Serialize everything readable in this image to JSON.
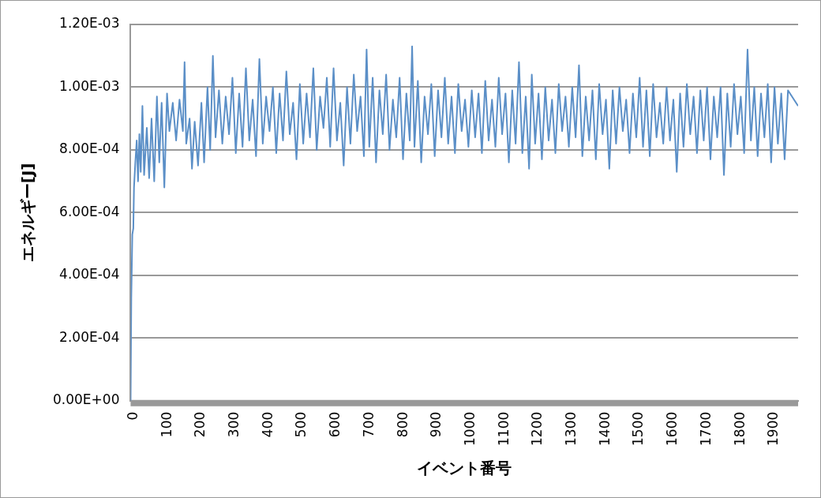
{
  "chart_data": {
    "type": "line",
    "xlabel": "イベント番号",
    "ylabel": "エネルギー[J]",
    "xlim": [
      0,
      1980
    ],
    "xticks": [
      0,
      100,
      200,
      300,
      400,
      500,
      600,
      700,
      800,
      900,
      1000,
      1100,
      1200,
      1300,
      1400,
      1500,
      1600,
      1700,
      1800,
      1900
    ],
    "ylim": [
      0,
      0.0012
    ],
    "yticks": [
      {
        "value": 0,
        "label": "0.00E+00"
      },
      {
        "value": 0.0002,
        "label": "2.00E-04"
      },
      {
        "value": 0.0004,
        "label": "4.00E-04"
      },
      {
        "value": 0.0006,
        "label": "6.00E-04"
      },
      {
        "value": 0.0008,
        "label": "8.00E-04"
      },
      {
        "value": 0.001,
        "label": "1.00E-03"
      },
      {
        "value": 0.0012,
        "label": "1.20E-03"
      }
    ],
    "grid": "y",
    "legend": false,
    "marker": "none",
    "line_style": "solid",
    "series": [
      {
        "color": "#5b8fc7",
        "x": [
          0,
          2,
          5,
          8,
          10,
          14,
          18,
          22,
          26,
          30,
          35,
          40,
          48,
          55,
          62,
          70,
          78,
          85,
          92,
          100,
          108,
          115,
          125,
          135,
          145,
          155,
          160,
          165,
          175,
          182,
          190,
          200,
          210,
          218,
          228,
          236,
          244,
          252,
          262,
          272,
          282,
          292,
          302,
          312,
          322,
          332,
          342,
          352,
          362,
          372,
          382,
          392,
          402,
          412,
          422,
          432,
          442,
          452,
          462,
          472,
          482,
          492,
          502,
          512,
          522,
          532,
          542,
          552,
          562,
          572,
          582,
          592,
          602,
          612,
          622,
          632,
          642,
          652,
          662,
          672,
          682,
          692,
          700,
          708,
          718,
          728,
          738,
          748,
          758,
          768,
          778,
          788,
          798,
          808,
          818,
          828,
          835,
          842,
          852,
          862,
          872,
          882,
          892,
          902,
          912,
          922,
          932,
          942,
          952,
          962,
          972,
          982,
          992,
          1002,
          1012,
          1022,
          1032,
          1042,
          1052,
          1062,
          1072,
          1082,
          1092,
          1102,
          1112,
          1122,
          1132,
          1142,
          1152,
          1162,
          1172,
          1182,
          1190,
          1200,
          1210,
          1220,
          1230,
          1240,
          1250,
          1260,
          1270,
          1280,
          1290,
          1300,
          1310,
          1320,
          1330,
          1340,
          1350,
          1360,
          1370,
          1380,
          1390,
          1400,
          1410,
          1420,
          1430,
          1440,
          1450,
          1460,
          1470,
          1480,
          1490,
          1500,
          1510,
          1520,
          1530,
          1540,
          1550,
          1560,
          1570,
          1580,
          1590,
          1600,
          1610,
          1620,
          1630,
          1640,
          1650,
          1660,
          1670,
          1680,
          1690,
          1700,
          1710,
          1720,
          1730,
          1740,
          1750,
          1760,
          1770,
          1780,
          1790,
          1800,
          1810,
          1820,
          1830,
          1840,
          1850,
          1860,
          1870,
          1880,
          1890,
          1900,
          1910,
          1920,
          1930,
          1940,
          1950,
          1980
        ],
        "values": [
          0,
          0.00033,
          0.00053,
          0.00055,
          0.00068,
          0.00076,
          0.00083,
          0.0007,
          0.00085,
          0.00073,
          0.00094,
          0.00072,
          0.00087,
          0.00071,
          0.0009,
          0.0007,
          0.00097,
          0.00076,
          0.00095,
          0.00068,
          0.00098,
          0.00086,
          0.00095,
          0.00083,
          0.00096,
          0.00086,
          0.00108,
          0.00082,
          0.0009,
          0.00074,
          0.00089,
          0.00075,
          0.00095,
          0.00076,
          0.001,
          0.0008,
          0.0011,
          0.00084,
          0.00099,
          0.00082,
          0.00097,
          0.00085,
          0.00103,
          0.00079,
          0.00098,
          0.00081,
          0.00106,
          0.00083,
          0.00096,
          0.00078,
          0.00109,
          0.00082,
          0.00097,
          0.00086,
          0.001,
          0.00079,
          0.00098,
          0.00083,
          0.00105,
          0.00085,
          0.00095,
          0.00077,
          0.00101,
          0.00082,
          0.00098,
          0.00084,
          0.00106,
          0.0008,
          0.00097,
          0.00087,
          0.00103,
          0.00081,
          0.00106,
          0.00083,
          0.00095,
          0.00075,
          0.001,
          0.00082,
          0.00104,
          0.00086,
          0.00097,
          0.00078,
          0.00112,
          0.00081,
          0.00103,
          0.00076,
          0.00099,
          0.00085,
          0.00104,
          0.0008,
          0.00096,
          0.00084,
          0.00103,
          0.00077,
          0.00098,
          0.00083,
          0.00113,
          0.00081,
          0.00102,
          0.00076,
          0.00097,
          0.00085,
          0.00101,
          0.00078,
          0.00099,
          0.00084,
          0.00103,
          0.00082,
          0.00097,
          0.00079,
          0.00101,
          0.00086,
          0.00096,
          0.00081,
          0.00099,
          0.00084,
          0.00098,
          0.00079,
          0.00102,
          0.00083,
          0.00096,
          0.00081,
          0.00103,
          0.00085,
          0.00098,
          0.00076,
          0.00099,
          0.00082,
          0.00108,
          0.00079,
          0.00097,
          0.00074,
          0.00104,
          0.00082,
          0.00098,
          0.00077,
          0.001,
          0.00083,
          0.00096,
          0.00079,
          0.00101,
          0.00086,
          0.00097,
          0.00081,
          0.001,
          0.00084,
          0.00107,
          0.00078,
          0.00097,
          0.00083,
          0.00099,
          0.00077,
          0.00101,
          0.00085,
          0.00096,
          0.00074,
          0.00099,
          0.00082,
          0.001,
          0.00086,
          0.00096,
          0.00079,
          0.00098,
          0.00084,
          0.00103,
          0.00081,
          0.00099,
          0.00078,
          0.00101,
          0.00084,
          0.00095,
          0.00082,
          0.001,
          0.00083,
          0.00096,
          0.00073,
          0.00098,
          0.00081,
          0.00101,
          0.00085,
          0.00097,
          0.00079,
          0.00099,
          0.00083,
          0.001,
          0.00077,
          0.00097,
          0.00084,
          0.001,
          0.00072,
          0.00098,
          0.00081,
          0.00101,
          0.00085,
          0.00097,
          0.00079,
          0.00112,
          0.00083,
          0.001,
          0.00078,
          0.00098,
          0.00084,
          0.00101,
          0.00076,
          0.001,
          0.00082,
          0.00098,
          0.00077,
          0.00099,
          0.00094
        ]
      }
    ]
  }
}
